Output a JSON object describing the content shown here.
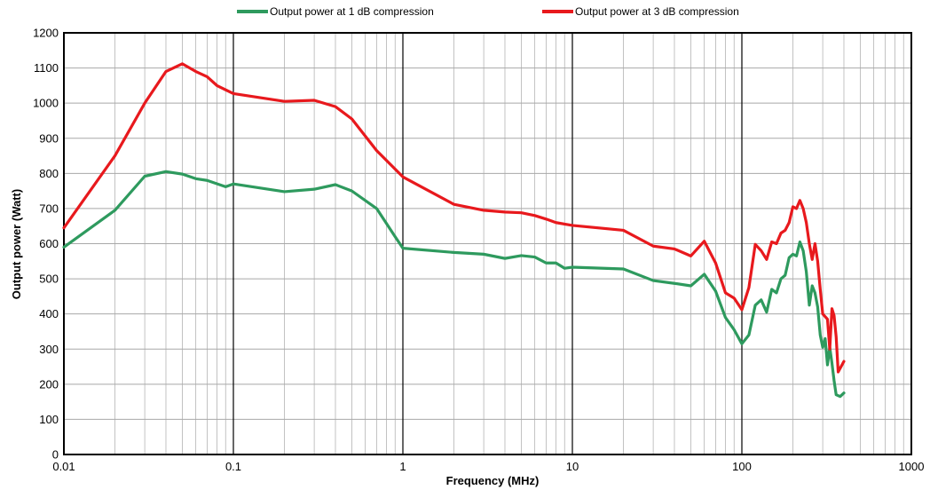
{
  "chart_data": {
    "type": "line",
    "title": "",
    "xlabel": "Frequency  (MHz)",
    "ylabel": "Output power (Watt)",
    "x_scale": "log",
    "xlim": [
      0.01,
      1000
    ],
    "ylim": [
      0,
      1200
    ],
    "y_ticks": [
      0,
      100,
      200,
      300,
      400,
      500,
      600,
      700,
      800,
      900,
      1000,
      1100,
      1200
    ],
    "x_ticks": [
      0.01,
      0.1,
      1,
      10,
      100,
      1000
    ],
    "x_tick_labels": [
      "0.01",
      "0.1",
      "1",
      "10",
      "100",
      "1000"
    ],
    "grid": true,
    "legend_position": "top",
    "series": [
      {
        "name": "Output power at 1 dB compression",
        "color": "#2e9a5e",
        "points": [
          [
            0.01,
            590
          ],
          [
            0.02,
            695
          ],
          [
            0.03,
            792
          ],
          [
            0.04,
            805
          ],
          [
            0.05,
            798
          ],
          [
            0.06,
            785
          ],
          [
            0.07,
            780
          ],
          [
            0.09,
            762
          ],
          [
            0.1,
            770
          ],
          [
            0.2,
            748
          ],
          [
            0.3,
            755
          ],
          [
            0.4,
            768
          ],
          [
            0.5,
            750
          ],
          [
            0.7,
            700
          ],
          [
            0.9,
            620
          ],
          [
            1,
            587
          ],
          [
            2,
            575
          ],
          [
            3,
            570
          ],
          [
            4,
            558
          ],
          [
            5,
            566
          ],
          [
            6,
            562
          ],
          [
            7,
            545
          ],
          [
            8,
            545
          ],
          [
            9,
            530
          ],
          [
            10,
            533
          ],
          [
            20,
            528
          ],
          [
            30,
            495
          ],
          [
            40,
            487
          ],
          [
            50,
            480
          ],
          [
            60,
            513
          ],
          [
            70,
            465
          ],
          [
            80,
            390
          ],
          [
            90,
            355
          ],
          [
            100,
            315
          ],
          [
            110,
            340
          ],
          [
            120,
            425
          ],
          [
            130,
            440
          ],
          [
            140,
            405
          ],
          [
            150,
            470
          ],
          [
            160,
            460
          ],
          [
            170,
            500
          ],
          [
            180,
            510
          ],
          [
            190,
            560
          ],
          [
            200,
            570
          ],
          [
            210,
            565
          ],
          [
            220,
            605
          ],
          [
            230,
            580
          ],
          [
            240,
            520
          ],
          [
            250,
            425
          ],
          [
            260,
            480
          ],
          [
            270,
            460
          ],
          [
            280,
            420
          ],
          [
            290,
            340
          ],
          [
            300,
            305
          ],
          [
            310,
            330
          ],
          [
            320,
            255
          ],
          [
            330,
            305
          ],
          [
            340,
            260
          ],
          [
            350,
            210
          ],
          [
            360,
            170
          ],
          [
            380,
            165
          ],
          [
            400,
            175
          ]
        ]
      },
      {
        "name": "Output power at 3 dB compression",
        "color": "#e8191d",
        "points": [
          [
            0.01,
            645
          ],
          [
            0.02,
            850
          ],
          [
            0.03,
            1000
          ],
          [
            0.04,
            1090
          ],
          [
            0.05,
            1112
          ],
          [
            0.06,
            1090
          ],
          [
            0.07,
            1075
          ],
          [
            0.08,
            1050
          ],
          [
            0.1,
            1027
          ],
          [
            0.2,
            1005
          ],
          [
            0.3,
            1008
          ],
          [
            0.4,
            990
          ],
          [
            0.5,
            955
          ],
          [
            0.7,
            865
          ],
          [
            1,
            790
          ],
          [
            2,
            712
          ],
          [
            3,
            695
          ],
          [
            4,
            690
          ],
          [
            5,
            688
          ],
          [
            6,
            680
          ],
          [
            7,
            670
          ],
          [
            8,
            660
          ],
          [
            10,
            652
          ],
          [
            20,
            638
          ],
          [
            30,
            593
          ],
          [
            40,
            585
          ],
          [
            50,
            565
          ],
          [
            60,
            607
          ],
          [
            70,
            545
          ],
          [
            80,
            460
          ],
          [
            90,
            445
          ],
          [
            100,
            412
          ],
          [
            110,
            475
          ],
          [
            120,
            598
          ],
          [
            130,
            580
          ],
          [
            140,
            555
          ],
          [
            150,
            605
          ],
          [
            160,
            600
          ],
          [
            170,
            630
          ],
          [
            180,
            638
          ],
          [
            190,
            660
          ],
          [
            200,
            705
          ],
          [
            210,
            700
          ],
          [
            220,
            723
          ],
          [
            230,
            700
          ],
          [
            240,
            660
          ],
          [
            250,
            600
          ],
          [
            260,
            555
          ],
          [
            270,
            600
          ],
          [
            280,
            550
          ],
          [
            290,
            470
          ],
          [
            300,
            400
          ],
          [
            320,
            385
          ],
          [
            330,
            300
          ],
          [
            340,
            415
          ],
          [
            350,
            395
          ],
          [
            360,
            335
          ],
          [
            370,
            235
          ],
          [
            400,
            265
          ]
        ]
      }
    ]
  }
}
